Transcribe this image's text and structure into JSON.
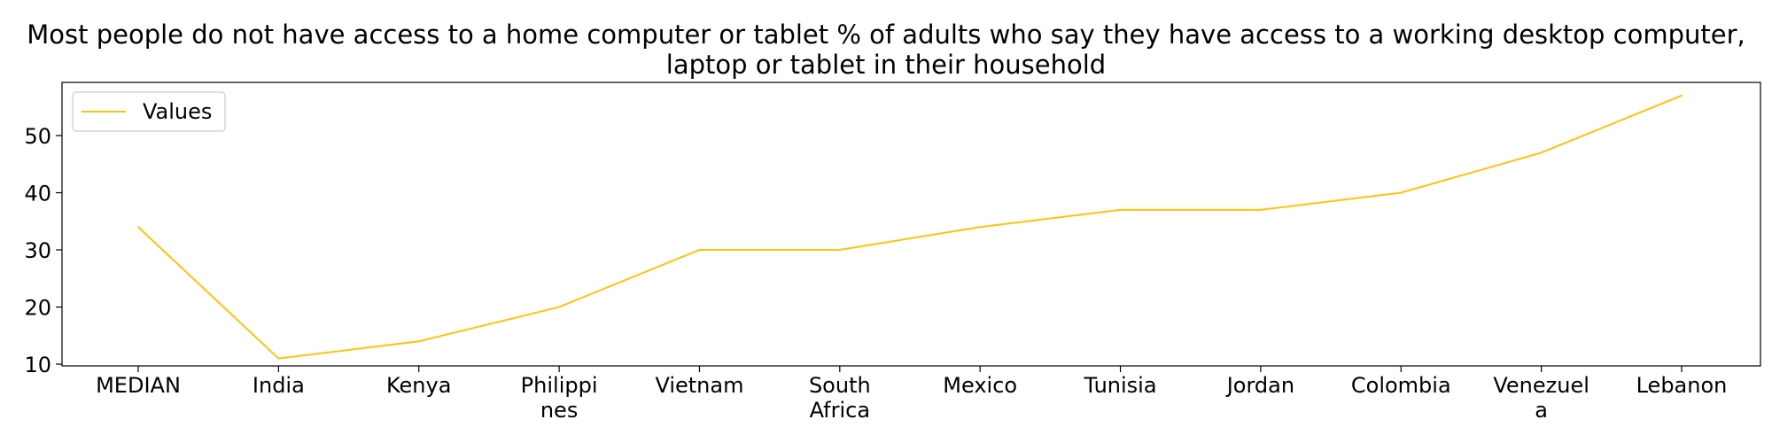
{
  "chart_data": {
    "type": "line",
    "title": "Most people do not have access to a home computer or tablet % of adults who say they have access to a working desktop computer, laptop or tablet in their household",
    "xlabel": "",
    "ylabel": "",
    "categories": [
      "MEDIAN",
      "India",
      "Kenya",
      "Philippines",
      "Vietnam",
      "South Africa",
      "Mexico",
      "Tunisia",
      "Jordan",
      "Colombia",
      "Venezuela",
      "Lebanon"
    ],
    "category_labels": [
      [
        "MEDIAN"
      ],
      [
        "India"
      ],
      [
        "Kenya"
      ],
      [
        "Philippi",
        "nes"
      ],
      [
        "Vietnam"
      ],
      [
        "South",
        "Africa"
      ],
      [
        "Mexico"
      ],
      [
        "Tunisia"
      ],
      [
        "Jordan"
      ],
      [
        "Colombia"
      ],
      [
        "Venezuel",
        "a"
      ],
      [
        "Lebanon"
      ]
    ],
    "series": [
      {
        "name": "Values",
        "color": "#ffc20e",
        "values": [
          34,
          11,
          14,
          20,
          30,
          30,
          34,
          37,
          37,
          40,
          47,
          57
        ]
      }
    ],
    "yticks": [
      10,
      20,
      30,
      40,
      50
    ],
    "ylim": [
      9.7,
      59.3
    ],
    "grid": false,
    "legend_position": "top-left"
  }
}
